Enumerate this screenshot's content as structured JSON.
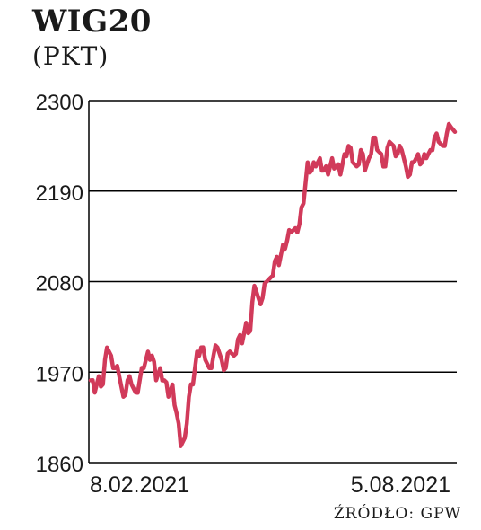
{
  "header": {
    "title": "WIG20",
    "unit": "(PKT)"
  },
  "source": "ŹRÓDŁO: GPW",
  "colors": {
    "line": "#d13a5a",
    "grid": "#000000",
    "text": "#1a1a1a"
  },
  "chart_data": {
    "type": "line",
    "title": "WIG20",
    "ylabel": "(PKT)",
    "ylim": [
      1860,
      2300
    ],
    "yticks": [
      1860,
      1970,
      2080,
      2190,
      2300
    ],
    "ytick_labels": [
      "1860",
      "1970",
      "2080",
      "2190",
      "2300"
    ],
    "xlim": [
      "2021-02-08",
      "2021-08-05"
    ],
    "xtick_labels": [
      "8.02.2021",
      "5.08.2021"
    ],
    "grid": true,
    "series": [
      {
        "x": [
          "2021-02-08",
          "2021-02-10",
          "2021-02-12",
          "2021-02-14",
          "2021-02-16",
          "2021-02-18",
          "2021-02-20",
          "2021-02-22",
          "2021-02-24",
          "2021-02-26",
          "2021-02-28",
          "2021-03-02",
          "2021-03-04",
          "2021-03-06",
          "2021-03-08",
          "2021-03-10",
          "2021-03-12",
          "2021-03-14",
          "2021-03-16",
          "2021-03-18",
          "2021-03-20",
          "2021-03-22",
          "2021-03-24",
          "2021-03-26",
          "2021-03-28",
          "2021-03-30",
          "2021-04-01",
          "2021-04-03",
          "2021-04-05",
          "2021-04-07",
          "2021-04-09",
          "2021-04-11",
          "2021-04-13",
          "2021-04-15",
          "2021-04-17",
          "2021-04-19",
          "2021-04-21",
          "2021-04-23",
          "2021-04-25",
          "2021-04-27",
          "2021-04-29",
          "2021-05-01",
          "2021-05-03",
          "2021-05-05",
          "2021-05-07",
          "2021-05-09",
          "2021-05-11",
          "2021-05-13",
          "2021-05-15",
          "2021-05-17",
          "2021-05-19",
          "2021-05-21",
          "2021-05-23",
          "2021-05-25",
          "2021-05-27",
          "2021-05-29",
          "2021-05-31",
          "2021-06-02",
          "2021-06-04",
          "2021-06-06",
          "2021-06-08",
          "2021-06-10",
          "2021-06-12",
          "2021-06-14",
          "2021-06-16",
          "2021-06-18",
          "2021-06-20",
          "2021-06-22",
          "2021-06-24",
          "2021-06-26",
          "2021-06-28",
          "2021-06-30",
          "2021-07-02",
          "2021-07-04",
          "2021-07-06",
          "2021-07-08",
          "2021-07-10",
          "2021-07-12",
          "2021-07-14",
          "2021-07-16",
          "2021-07-18",
          "2021-07-20",
          "2021-07-22",
          "2021-07-24",
          "2021-07-26",
          "2021-07-28",
          "2021-07-30",
          "2021-08-01",
          "2021-08-03",
          "2021-08-05"
        ],
        "values": [
          1960,
          1945,
          1965,
          1955,
          2000,
          1990,
          1975,
          1965,
          1940,
          1960,
          1955,
          1945,
          1960,
          1975,
          1995,
          1990,
          1960,
          1975,
          1960,
          1940,
          1955,
          1920,
          1880,
          1890,
          1940,
          1955,
          1995,
          2000,
          1985,
          1975,
          1990,
          2000,
          1985,
          1975,
          1995,
          1990,
          2010,
          2005,
          2030,
          2020,
          2075,
          2060,
          2060,
          2080,
          2085,
          2105,
          2100,
          2125,
          2130,
          2140,
          2145,
          2150,
          2175,
          2225,
          2215,
          2220,
          2230,
          2215,
          2210,
          2230,
          2220,
          2210,
          2235,
          2245,
          2225,
          2220,
          2240,
          2215,
          2230,
          2255,
          2240,
          2235,
          2220,
          2250,
          2245,
          2235,
          2240,
          2220,
          2210,
          2225,
          2235,
          2225,
          2230,
          2240,
          2255,
          2250,
          2245,
          2260,
          2268,
          2262
        ],
        "style": "jagged"
      }
    ]
  }
}
